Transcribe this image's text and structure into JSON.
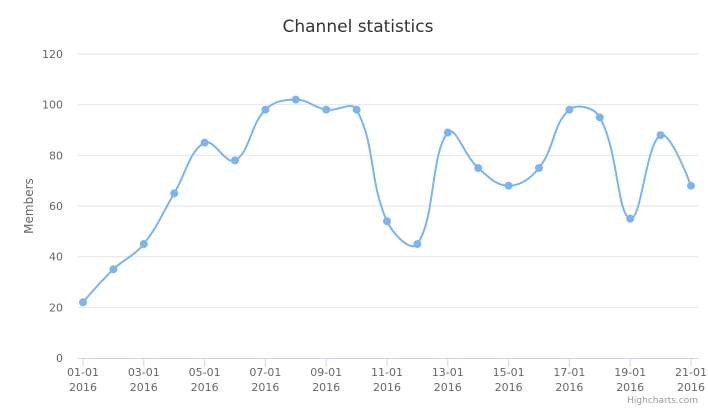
{
  "chart_data": {
    "type": "line",
    "title": "Channel statistics",
    "ylabel": "Members",
    "xlabel": "",
    "ylim": [
      0,
      120
    ],
    "y_ticks": [
      0,
      20,
      40,
      60,
      80,
      100,
      120
    ],
    "x_tick_labels": [
      {
        "day": "01-01",
        "year": "2016"
      },
      {
        "day": "03-01",
        "year": "2016"
      },
      {
        "day": "05-01",
        "year": "2016"
      },
      {
        "day": "07-01",
        "year": "2016"
      },
      {
        "day": "09-01",
        "year": "2016"
      },
      {
        "day": "11-01",
        "year": "2016"
      },
      {
        "day": "13-01",
        "year": "2016"
      },
      {
        "day": "15-01",
        "year": "2016"
      },
      {
        "day": "17-01",
        "year": "2016"
      },
      {
        "day": "19-01",
        "year": "2016"
      },
      {
        "day": "21-01",
        "year": "2016"
      }
    ],
    "x": [
      "2016-01-01",
      "2016-01-02",
      "2016-01-03",
      "2016-01-04",
      "2016-01-05",
      "2016-01-06",
      "2016-01-07",
      "2016-01-08",
      "2016-01-09",
      "2016-01-10",
      "2016-01-11",
      "2016-01-12",
      "2016-01-13",
      "2016-01-14",
      "2016-01-15",
      "2016-01-16",
      "2016-01-17",
      "2016-01-18",
      "2016-01-19",
      "2016-01-20",
      "2016-01-21"
    ],
    "series": [
      {
        "values": [
          22,
          35,
          45,
          65,
          85,
          78,
          98,
          102,
          98,
          98,
          54,
          45,
          89,
          75,
          68,
          75,
          98,
          95,
          55,
          88,
          68
        ],
        "color": "#7cb5ec"
      }
    ],
    "grid": true,
    "legend": "none",
    "credits": "Highcharts.com"
  }
}
